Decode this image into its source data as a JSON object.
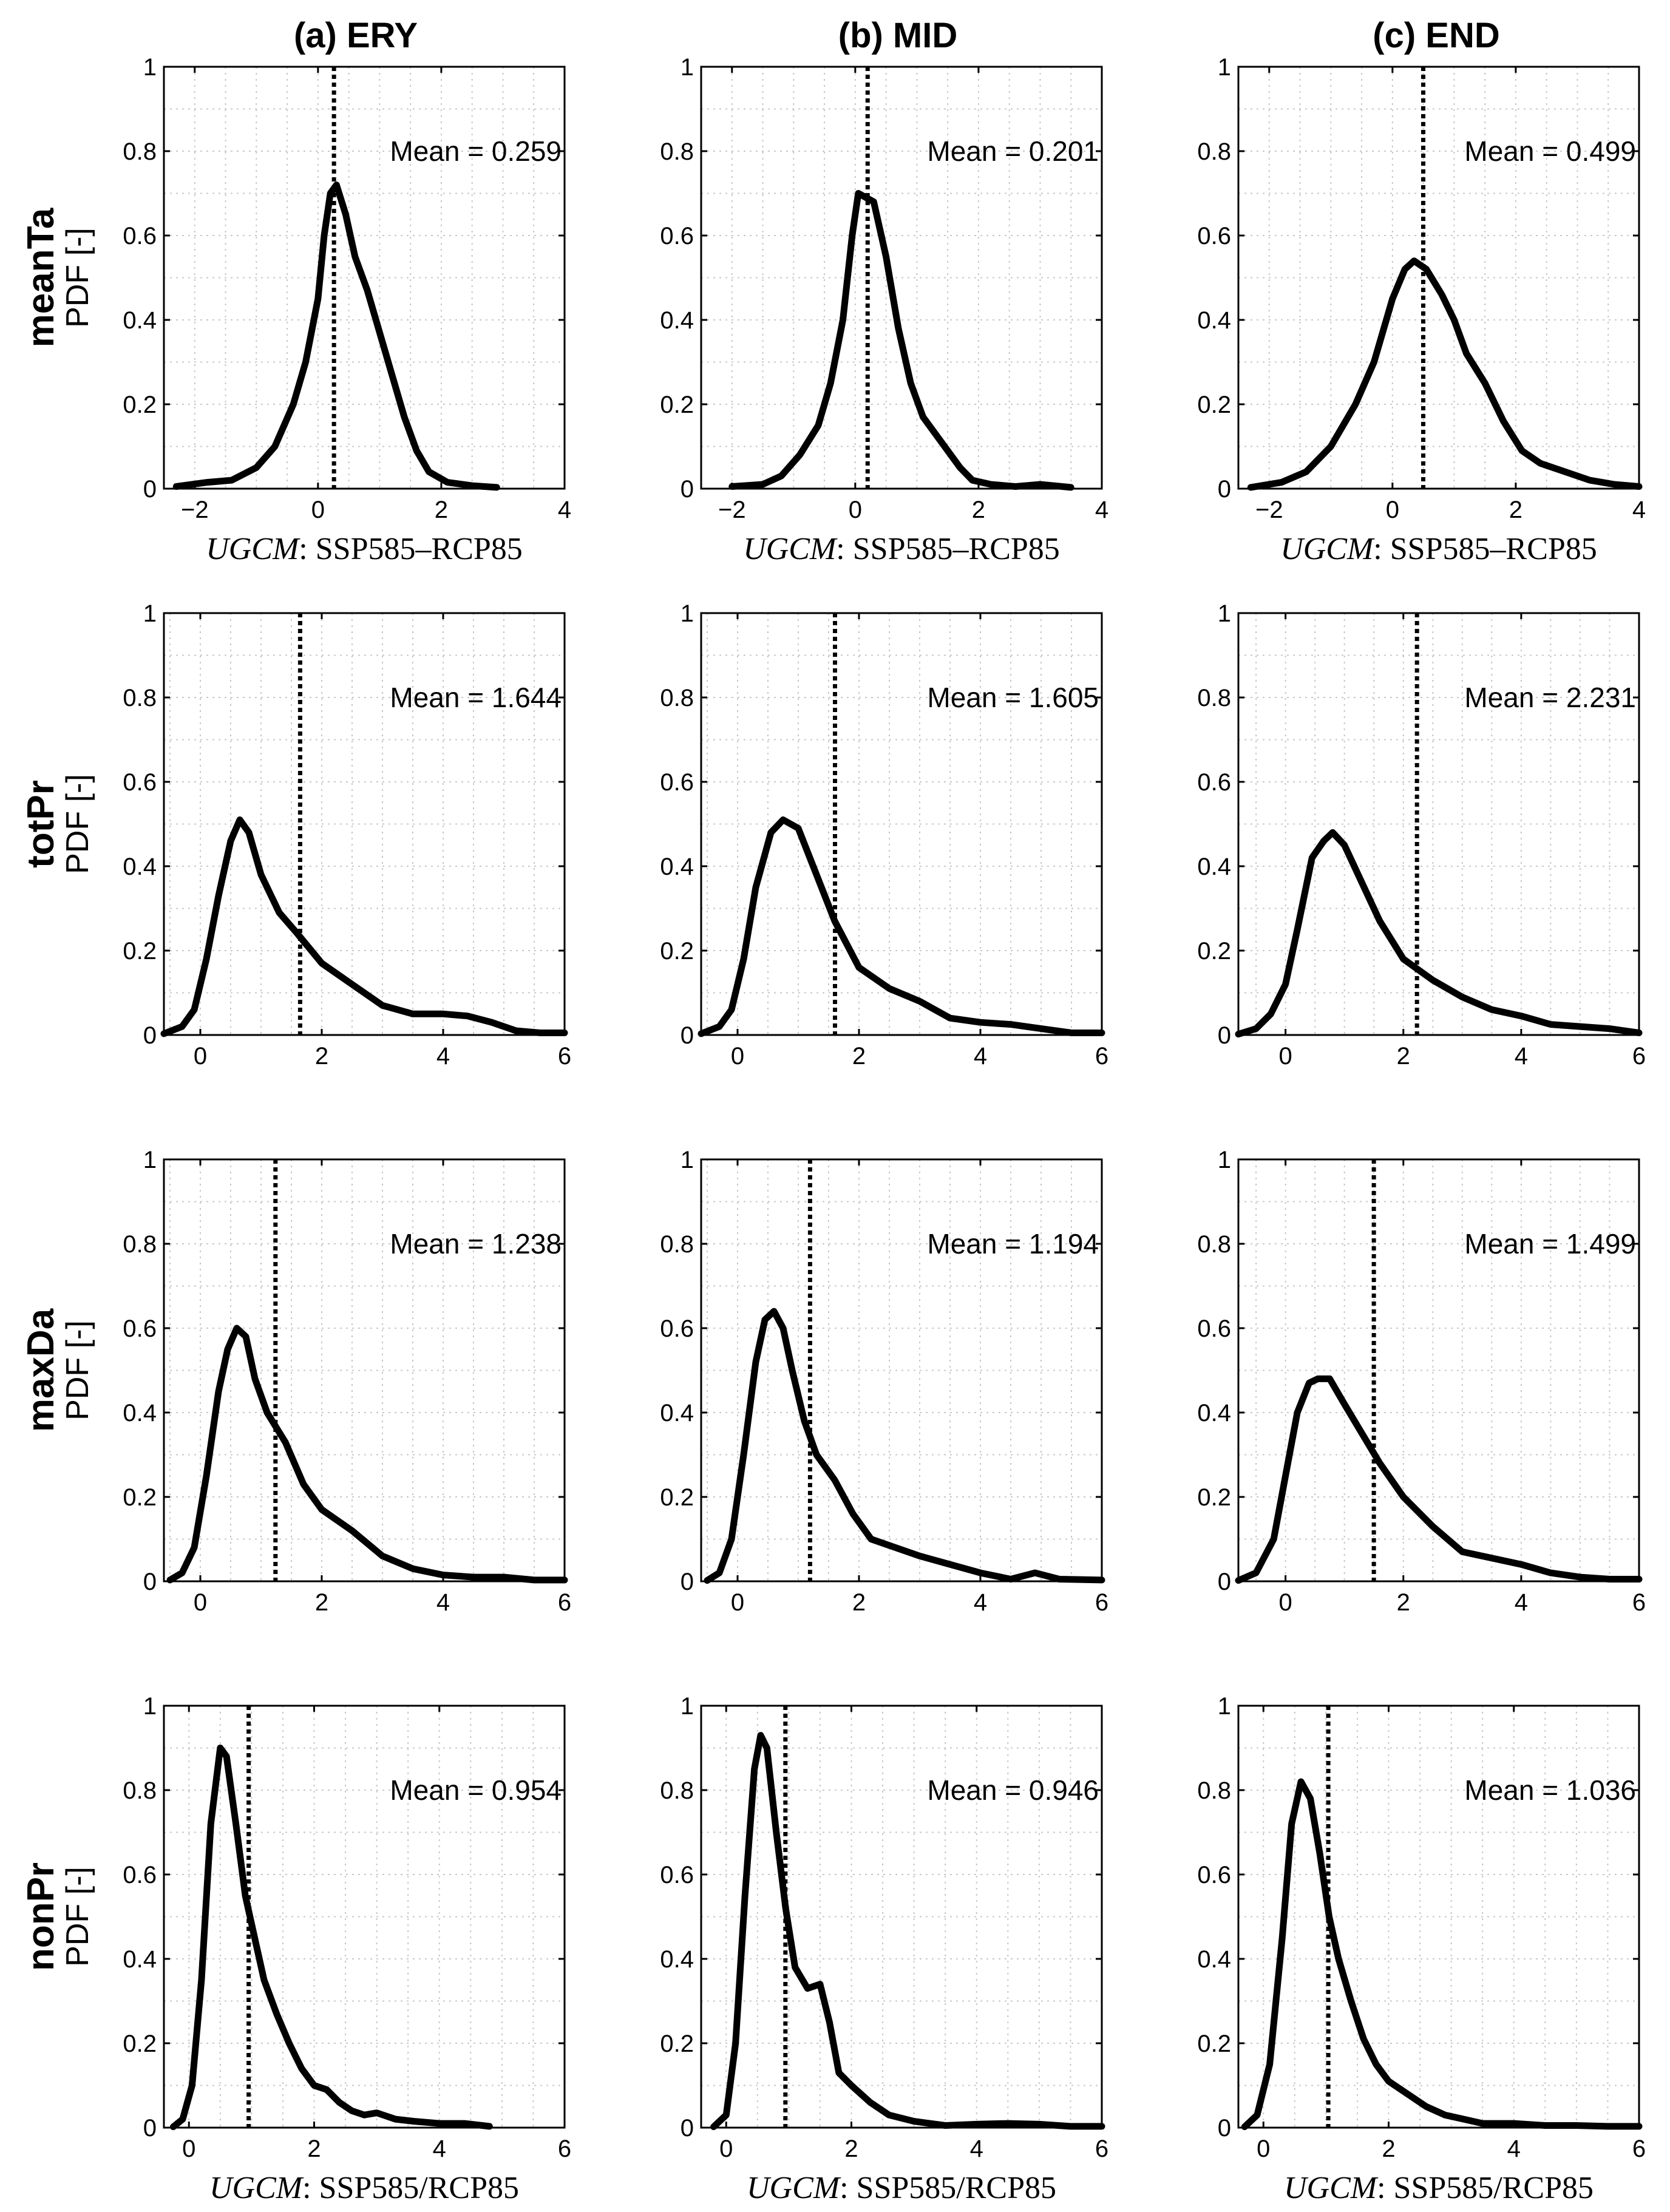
{
  "figure": {
    "columns": [
      "(a) ERY",
      "(b) MID",
      "(c) END"
    ],
    "rows": [
      "meanTa",
      "totPr",
      "maxDa",
      "nonPr"
    ],
    "ylabel": "PDF [-]",
    "xlabel_diff": {
      "prefix": "UGCM",
      "rest": ": SSP585–RCP85"
    },
    "xlabel_ratio": {
      "prefix": "UGCM",
      "rest": ": SSP585/RCP85"
    },
    "mean_prefix": "Mean = "
  },
  "chart_data": [
    {
      "type": "line",
      "row": "meanTa",
      "column": "(a) ERY",
      "xlim": [
        -2.5,
        4
      ],
      "ylim": [
        0,
        1
      ],
      "xticks": [
        -2,
        0,
        2,
        4
      ],
      "yticks": [
        0,
        0.2,
        0.4,
        0.6,
        0.8,
        1
      ],
      "mean": 0.259,
      "mean_label": "0.259",
      "xlabel": "diff",
      "x": [
        -2.3,
        -1.8,
        -1.4,
        -1.0,
        -0.7,
        -0.4,
        -0.2,
        0.0,
        0.1,
        0.2,
        0.3,
        0.45,
        0.6,
        0.8,
        1.0,
        1.2,
        1.4,
        1.6,
        1.8,
        2.1,
        2.5,
        2.9
      ],
      "y": [
        0.005,
        0.015,
        0.02,
        0.05,
        0.1,
        0.2,
        0.3,
        0.45,
        0.6,
        0.7,
        0.72,
        0.65,
        0.55,
        0.47,
        0.37,
        0.27,
        0.17,
        0.09,
        0.04,
        0.015,
        0.007,
        0.003
      ]
    },
    {
      "type": "line",
      "row": "meanTa",
      "column": "(b) MID",
      "xlim": [
        -2.5,
        4
      ],
      "ylim": [
        0,
        1
      ],
      "xticks": [
        -2,
        0,
        2,
        4
      ],
      "yticks": [
        0,
        0.2,
        0.4,
        0.6,
        0.8,
        1
      ],
      "mean": 0.201,
      "mean_label": "0.201",
      "xlabel": "diff",
      "x": [
        -2.0,
        -1.5,
        -1.2,
        -0.9,
        -0.6,
        -0.4,
        -0.2,
        -0.05,
        0.05,
        0.3,
        0.5,
        0.7,
        0.9,
        1.1,
        1.3,
        1.5,
        1.7,
        1.9,
        2.2,
        2.6,
        3.0,
        3.5
      ],
      "y": [
        0.005,
        0.01,
        0.03,
        0.08,
        0.15,
        0.25,
        0.4,
        0.6,
        0.7,
        0.68,
        0.55,
        0.38,
        0.25,
        0.17,
        0.13,
        0.09,
        0.05,
        0.02,
        0.01,
        0.005,
        0.01,
        0.003
      ]
    },
    {
      "type": "line",
      "row": "meanTa",
      "column": "(c) END",
      "xlim": [
        -2.5,
        4
      ],
      "ylim": [
        0,
        1
      ],
      "xticks": [
        -2,
        0,
        2,
        4
      ],
      "yticks": [
        0,
        0.2,
        0.4,
        0.6,
        0.8,
        1
      ],
      "mean": 0.499,
      "mean_label": "0.499",
      "xlabel": "diff",
      "x": [
        -2.3,
        -1.8,
        -1.4,
        -1.0,
        -0.6,
        -0.3,
        0.0,
        0.2,
        0.35,
        0.55,
        0.8,
        1.0,
        1.2,
        1.5,
        1.8,
        2.1,
        2.4,
        2.8,
        3.2,
        3.6,
        4.0
      ],
      "y": [
        0.003,
        0.015,
        0.04,
        0.1,
        0.2,
        0.3,
        0.45,
        0.52,
        0.54,
        0.52,
        0.46,
        0.4,
        0.32,
        0.25,
        0.16,
        0.09,
        0.06,
        0.04,
        0.02,
        0.01,
        0.005
      ]
    },
    {
      "type": "line",
      "row": "totPr",
      "column": "(a) ERY",
      "xlim": [
        -0.6,
        6
      ],
      "ylim": [
        0,
        1
      ],
      "xticks": [
        0,
        2,
        4,
        6
      ],
      "yticks": [
        0,
        0.2,
        0.4,
        0.6,
        0.8,
        1
      ],
      "mean": 1.644,
      "mean_label": "1.644",
      "xlabel": "none",
      "x": [
        -0.6,
        -0.3,
        -0.1,
        0.1,
        0.3,
        0.5,
        0.65,
        0.8,
        1.0,
        1.3,
        1.6,
        2.0,
        2.5,
        3.0,
        3.5,
        4.0,
        4.4,
        4.8,
        5.2,
        5.6,
        6.0
      ],
      "y": [
        0.003,
        0.02,
        0.06,
        0.18,
        0.33,
        0.46,
        0.51,
        0.48,
        0.38,
        0.29,
        0.24,
        0.17,
        0.12,
        0.07,
        0.05,
        0.05,
        0.045,
        0.03,
        0.01,
        0.005,
        0.005
      ]
    },
    {
      "type": "line",
      "row": "totPr",
      "column": "(b) MID",
      "xlim": [
        -0.6,
        6
      ],
      "ylim": [
        0,
        1
      ],
      "xticks": [
        0,
        2,
        4,
        6
      ],
      "yticks": [
        0,
        0.2,
        0.4,
        0.6,
        0.8,
        1
      ],
      "mean": 1.605,
      "mean_label": "1.605",
      "xlabel": "none",
      "x": [
        -0.6,
        -0.3,
        -0.1,
        0.1,
        0.3,
        0.55,
        0.75,
        1.0,
        1.3,
        1.6,
        2.0,
        2.5,
        3.0,
        3.5,
        4.0,
        4.5,
        5.0,
        5.5,
        6.0
      ],
      "y": [
        0.003,
        0.02,
        0.06,
        0.18,
        0.35,
        0.48,
        0.51,
        0.49,
        0.38,
        0.27,
        0.16,
        0.11,
        0.08,
        0.04,
        0.03,
        0.025,
        0.015,
        0.005,
        0.005
      ]
    },
    {
      "type": "line",
      "row": "totPr",
      "column": "(c) END",
      "xlim": [
        -0.8,
        6
      ],
      "ylim": [
        0,
        1
      ],
      "xticks": [
        0,
        2,
        4,
        6
      ],
      "yticks": [
        0,
        0.2,
        0.4,
        0.6,
        0.8,
        1
      ],
      "mean": 2.231,
      "mean_label": "2.231",
      "xlabel": "none",
      "x": [
        -0.8,
        -0.5,
        -0.25,
        0.0,
        0.2,
        0.45,
        0.65,
        0.8,
        1.0,
        1.3,
        1.6,
        2.0,
        2.5,
        3.0,
        3.5,
        4.0,
        4.5,
        5.0,
        5.5,
        6.0
      ],
      "y": [
        0.002,
        0.015,
        0.05,
        0.12,
        0.25,
        0.42,
        0.46,
        0.48,
        0.45,
        0.36,
        0.27,
        0.18,
        0.13,
        0.09,
        0.06,
        0.045,
        0.025,
        0.02,
        0.015,
        0.005
      ]
    },
    {
      "type": "line",
      "row": "maxDa",
      "column": "(a) ERY",
      "xlim": [
        -0.6,
        6
      ],
      "ylim": [
        0,
        1
      ],
      "xticks": [
        0,
        2,
        4,
        6
      ],
      "yticks": [
        0,
        0.2,
        0.4,
        0.6,
        0.8,
        1
      ],
      "mean": 1.238,
      "mean_label": "1.238",
      "xlabel": "none",
      "x": [
        -0.5,
        -0.3,
        -0.1,
        0.1,
        0.3,
        0.45,
        0.6,
        0.75,
        0.9,
        1.1,
        1.4,
        1.7,
        2.0,
        2.5,
        3.0,
        3.5,
        4.0,
        4.5,
        5.0,
        5.5,
        6.0
      ],
      "y": [
        0.003,
        0.02,
        0.08,
        0.25,
        0.45,
        0.55,
        0.6,
        0.58,
        0.48,
        0.4,
        0.33,
        0.23,
        0.17,
        0.12,
        0.06,
        0.03,
        0.015,
        0.01,
        0.01,
        0.003,
        0.003
      ]
    },
    {
      "type": "line",
      "row": "maxDa",
      "column": "(b) MID",
      "xlim": [
        -0.6,
        6
      ],
      "ylim": [
        0,
        1
      ],
      "xticks": [
        0,
        2,
        4,
        6
      ],
      "yticks": [
        0,
        0.2,
        0.4,
        0.6,
        0.8,
        1
      ],
      "mean": 1.194,
      "mean_label": "1.194",
      "xlabel": "none",
      "x": [
        -0.5,
        -0.3,
        -0.1,
        0.1,
        0.3,
        0.45,
        0.6,
        0.75,
        0.9,
        1.1,
        1.3,
        1.6,
        1.9,
        2.2,
        2.6,
        3.0,
        3.5,
        4.0,
        4.5,
        4.9,
        5.3,
        6.0
      ],
      "y": [
        0.002,
        0.02,
        0.1,
        0.3,
        0.52,
        0.62,
        0.64,
        0.6,
        0.5,
        0.38,
        0.3,
        0.24,
        0.16,
        0.1,
        0.08,
        0.06,
        0.04,
        0.02,
        0.005,
        0.02,
        0.005,
        0.003
      ]
    },
    {
      "type": "line",
      "row": "maxDa",
      "column": "(c) END",
      "xlim": [
        -0.8,
        6
      ],
      "ylim": [
        0,
        1
      ],
      "xticks": [
        0,
        2,
        4,
        6
      ],
      "yticks": [
        0,
        0.2,
        0.4,
        0.6,
        0.8,
        1
      ],
      "mean": 1.499,
      "mean_label": "1.499",
      "xlabel": "none",
      "x": [
        -0.8,
        -0.5,
        -0.2,
        0.0,
        0.2,
        0.4,
        0.55,
        0.75,
        1.0,
        1.3,
        1.6,
        2.0,
        2.5,
        3.0,
        3.5,
        4.0,
        4.5,
        5.0,
        5.5,
        6.0
      ],
      "y": [
        0.002,
        0.02,
        0.1,
        0.25,
        0.4,
        0.47,
        0.48,
        0.48,
        0.42,
        0.35,
        0.28,
        0.2,
        0.13,
        0.07,
        0.055,
        0.04,
        0.02,
        0.01,
        0.005,
        0.005
      ]
    },
    {
      "type": "line",
      "row": "nonPr",
      "column": "(a) ERY",
      "xlim": [
        -0.4,
        6
      ],
      "ylim": [
        0,
        1
      ],
      "xticks": [
        0,
        2,
        4,
        6
      ],
      "yticks": [
        0,
        0.2,
        0.4,
        0.6,
        0.8,
        1
      ],
      "mean": 0.954,
      "mean_label": "0.954",
      "xlabel": "ratio",
      "x": [
        -0.25,
        -0.1,
        0.05,
        0.2,
        0.35,
        0.5,
        0.6,
        0.75,
        0.9,
        1.05,
        1.2,
        1.4,
        1.6,
        1.8,
        2.0,
        2.2,
        2.4,
        2.6,
        2.8,
        3.0,
        3.3,
        3.6,
        4.0,
        4.4,
        4.8
      ],
      "y": [
        0.002,
        0.02,
        0.1,
        0.35,
        0.72,
        0.9,
        0.88,
        0.72,
        0.55,
        0.45,
        0.35,
        0.27,
        0.2,
        0.14,
        0.1,
        0.09,
        0.06,
        0.04,
        0.03,
        0.035,
        0.02,
        0.015,
        0.01,
        0.01,
        0.003
      ]
    },
    {
      "type": "line",
      "row": "nonPr",
      "column": "(b) MID",
      "xlim": [
        -0.4,
        6
      ],
      "ylim": [
        0,
        1
      ],
      "xticks": [
        0,
        2,
        4,
        6
      ],
      "yticks": [
        0,
        0.2,
        0.4,
        0.6,
        0.8,
        1
      ],
      "mean": 0.946,
      "mean_label": "0.946",
      "xlabel": "ratio",
      "x": [
        -0.2,
        0.0,
        0.15,
        0.3,
        0.45,
        0.55,
        0.65,
        0.8,
        0.95,
        1.1,
        1.3,
        1.5,
        1.65,
        1.8,
        2.0,
        2.3,
        2.6,
        3.0,
        3.5,
        4.0,
        4.5,
        5.0,
        5.5,
        6.0
      ],
      "y": [
        0.002,
        0.03,
        0.2,
        0.55,
        0.85,
        0.93,
        0.9,
        0.7,
        0.52,
        0.38,
        0.33,
        0.34,
        0.25,
        0.13,
        0.1,
        0.06,
        0.03,
        0.015,
        0.005,
        0.008,
        0.01,
        0.008,
        0.003,
        0.003
      ]
    },
    {
      "type": "line",
      "row": "nonPr",
      "column": "(c) END",
      "xlim": [
        -0.4,
        6
      ],
      "ylim": [
        0,
        1
      ],
      "xticks": [
        0,
        2,
        4,
        6
      ],
      "yticks": [
        0,
        0.2,
        0.4,
        0.6,
        0.8,
        1
      ],
      "mean": 1.036,
      "mean_label": "1.036",
      "xlabel": "ratio",
      "x": [
        -0.3,
        -0.1,
        0.1,
        0.3,
        0.45,
        0.6,
        0.75,
        0.9,
        1.05,
        1.2,
        1.4,
        1.6,
        1.8,
        2.0,
        2.3,
        2.6,
        2.9,
        3.2,
        3.5,
        4.0,
        4.5,
        5.0,
        5.5,
        6.0
      ],
      "y": [
        0.002,
        0.03,
        0.15,
        0.45,
        0.72,
        0.82,
        0.78,
        0.65,
        0.5,
        0.4,
        0.3,
        0.21,
        0.15,
        0.11,
        0.08,
        0.05,
        0.03,
        0.02,
        0.01,
        0.01,
        0.005,
        0.005,
        0.003,
        0.003
      ]
    }
  ]
}
